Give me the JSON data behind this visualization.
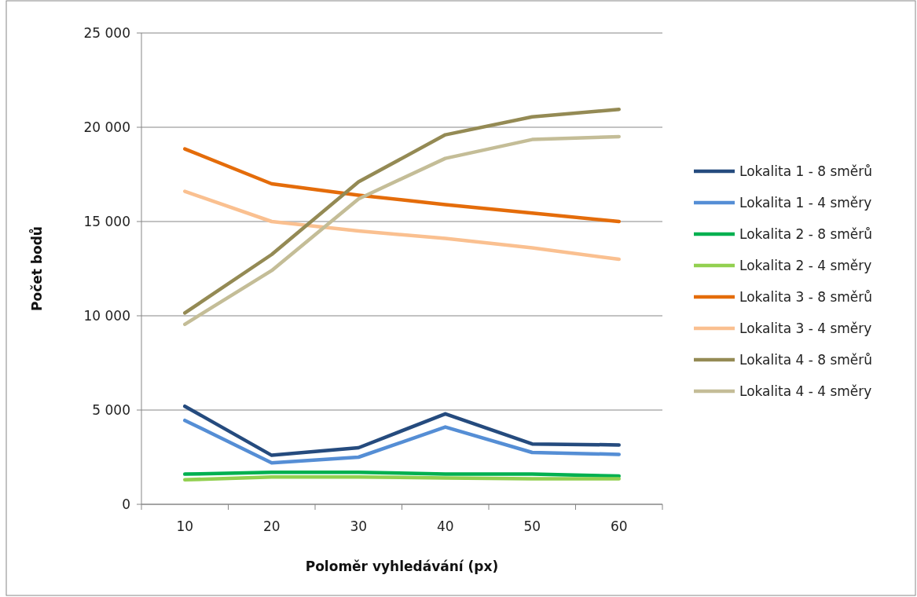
{
  "chart_data": {
    "type": "line",
    "xlabel": "Poloměr vyhledávání (px)",
    "ylabel": "Počet bodů",
    "categories": [
      "10",
      "20",
      "30",
      "40",
      "50",
      "60"
    ],
    "series": [
      {
        "name": "Lokalita 1 - 8 směrů",
        "color": "#254b7e",
        "values": [
          5200,
          2600,
          3000,
          4800,
          3200,
          3150
        ]
      },
      {
        "name": "Lokalita 1 - 4 směry",
        "color": "#558ed5",
        "values": [
          4450,
          2200,
          2500,
          4100,
          2750,
          2650
        ]
      },
      {
        "name": "Lokalita 2 - 8 směrů",
        "color": "#00b050",
        "values": [
          1600,
          1700,
          1700,
          1600,
          1600,
          1500
        ]
      },
      {
        "name": "Lokalita 2 - 4 směry",
        "color": "#92d050",
        "values": [
          1300,
          1450,
          1450,
          1400,
          1350,
          1350
        ]
      },
      {
        "name": "Lokalita 3 - 8 směrů",
        "color": "#e46c0a",
        "values": [
          18850,
          17000,
          16400,
          15900,
          15450,
          15000
        ]
      },
      {
        "name": "Lokalita 3 - 4 směry",
        "color": "#fac090",
        "values": [
          16600,
          15000,
          14500,
          14100,
          13600,
          13000
        ]
      },
      {
        "name": "Lokalita 4 - 8 směrů",
        "color": "#948a54",
        "values": [
          10150,
          13250,
          17100,
          19600,
          20550,
          20950
        ]
      },
      {
        "name": "Lokalita 4 - 4 směry",
        "color": "#c4bd97",
        "values": [
          9550,
          12400,
          16200,
          18350,
          19350,
          19500
        ]
      }
    ],
    "ylim": [
      0,
      25000
    ],
    "yticks": [
      {
        "value": 0,
        "label": "0"
      },
      {
        "value": 5000,
        "label": "5 000"
      },
      {
        "value": 10000,
        "label": "10 000"
      },
      {
        "value": 15000,
        "label": "15 000"
      },
      {
        "value": 20000,
        "label": "20 000"
      },
      {
        "value": 25000,
        "label": "25 000"
      }
    ],
    "grid": "y",
    "legend": "right",
    "marker": "none",
    "line_style": "solid"
  }
}
